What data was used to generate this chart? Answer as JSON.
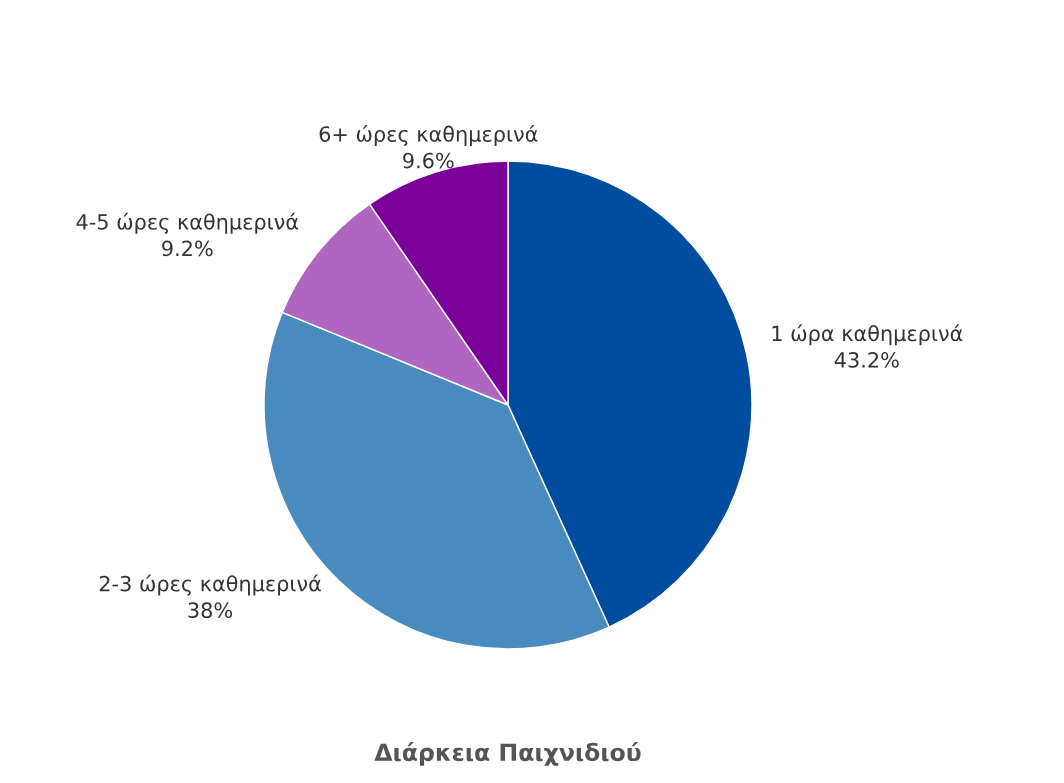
{
  "chart_data": {
    "type": "pie",
    "title": "Διάρκεια Παιχνιδιού",
    "categories": [
      "1 ώρα καθημερινά",
      "2-3 ώρες καθημερινά",
      "4-5 ώρες καθημερινά",
      "6+ ώρες καθημερινά"
    ],
    "values": [
      43.2,
      38,
      9.2,
      9.6
    ],
    "value_labels": [
      "43.2%",
      "38%",
      "9.2%",
      "9.6%"
    ],
    "colors": [
      "#004c9e",
      "#4a8bbf",
      "#b065c0",
      "#7b0099"
    ]
  }
}
